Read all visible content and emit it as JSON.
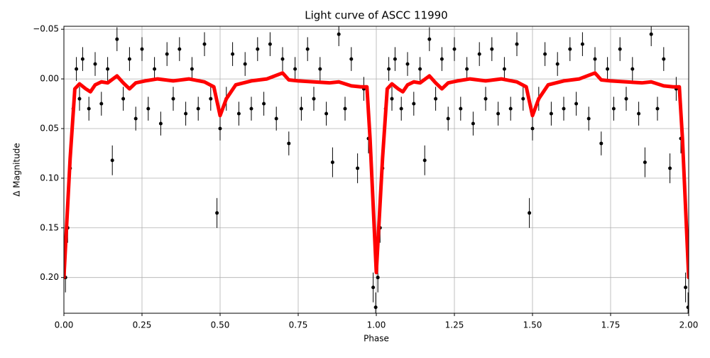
{
  "chart_data": {
    "type": "scatter",
    "title": "Light curve of ASCC 11990",
    "xlabel": "Phase",
    "ylabel": "Δ Magnitude",
    "xlim": [
      0,
      2
    ],
    "ylim": [
      0.236,
      -0.053
    ],
    "xticks": [
      {
        "value": 0,
        "label": "0.00"
      },
      {
        "value": 0.25,
        "label": "0.25"
      },
      {
        "value": 0.5,
        "label": "0.50"
      },
      {
        "value": 0.75,
        "label": "0.75"
      },
      {
        "value": 1,
        "label": "1.00"
      },
      {
        "value": 1.25,
        "label": "1.25"
      },
      {
        "value": 1.5,
        "label": "1.50"
      },
      {
        "value": 1.75,
        "label": "1.75"
      },
      {
        "value": 2,
        "label": "2.00"
      }
    ],
    "yticks": [
      {
        "value": -0.05,
        "label": "−0.05"
      },
      {
        "value": 0,
        "label": "0.00"
      },
      {
        "value": 0.05,
        "label": "0.05"
      },
      {
        "value": 0.1,
        "label": "0.10"
      },
      {
        "value": 0.15,
        "label": "0.15"
      },
      {
        "value": 0.2,
        "label": "0.20"
      }
    ],
    "grid": true,
    "series": [
      {
        "kind": "errorbar",
        "color": "#000000",
        "x": [
          0.005,
          0.012,
          0.02,
          0.03,
          0.04,
          0.05,
          0.06,
          0.08,
          0.1,
          0.12,
          0.14,
          0.155,
          0.17,
          0.19,
          0.21,
          0.23,
          0.25,
          0.27,
          0.29,
          0.31,
          0.33,
          0.35,
          0.37,
          0.39,
          0.41,
          0.43,
          0.45,
          0.47,
          0.49,
          0.5,
          0.52,
          0.54,
          0.56,
          0.58,
          0.6,
          0.62,
          0.64,
          0.66,
          0.68,
          0.7,
          0.72,
          0.74,
          0.76,
          0.78,
          0.8,
          0.82,
          0.84,
          0.86,
          0.88,
          0.9,
          0.92,
          0.94,
          0.96,
          0.975,
          0.99,
          0.998,
          1.005,
          1.012,
          1.02,
          1.03,
          1.04,
          1.05,
          1.06,
          1.08,
          1.1,
          1.12,
          1.14,
          1.155,
          1.17,
          1.19,
          1.21,
          1.23,
          1.25,
          1.27,
          1.29,
          1.31,
          1.33,
          1.35,
          1.37,
          1.39,
          1.41,
          1.43,
          1.45,
          1.47,
          1.49,
          1.5,
          1.52,
          1.54,
          1.56,
          1.58,
          1.6,
          1.62,
          1.64,
          1.66,
          1.68,
          1.7,
          1.72,
          1.74,
          1.76,
          1.78,
          1.8,
          1.82,
          1.84,
          1.86,
          1.88,
          1.9,
          1.92,
          1.94,
          1.96,
          1.975,
          1.99,
          1.998
        ],
        "values": [
          0.2,
          0.15,
          0.09,
          0.03,
          -0.01,
          0.02,
          -0.02,
          0.03,
          -0.015,
          0.025,
          -0.01,
          0.082,
          -0.04,
          0.02,
          -0.02,
          0.04,
          -0.03,
          0.03,
          -0.01,
          0.045,
          -0.025,
          0.02,
          -0.03,
          0.035,
          -0.01,
          0.03,
          -0.035,
          0.02,
          0.135,
          0.05,
          0.02,
          -0.025,
          0.035,
          -0.015,
          0.03,
          -0.03,
          0.025,
          -0.035,
          0.04,
          -0.02,
          0.065,
          -0.01,
          0.03,
          -0.03,
          0.02,
          -0.01,
          0.035,
          0.084,
          -0.045,
          0.03,
          -0.02,
          0.09,
          0.01,
          0.06,
          0.21,
          0.23,
          0.2,
          0.15,
          0.09,
          0.03,
          -0.01,
          0.02,
          -0.02,
          0.03,
          -0.015,
          0.025,
          -0.01,
          0.082,
          -0.04,
          0.02,
          -0.02,
          0.04,
          -0.03,
          0.03,
          -0.01,
          0.045,
          -0.025,
          0.02,
          -0.03,
          0.035,
          -0.01,
          0.03,
          -0.035,
          0.02,
          0.135,
          0.05,
          0.02,
          -0.025,
          0.035,
          -0.015,
          0.03,
          -0.03,
          0.025,
          -0.035,
          0.04,
          -0.02,
          0.065,
          -0.01,
          0.03,
          -0.03,
          0.02,
          -0.01,
          0.035,
          0.084,
          -0.045,
          0.03,
          -0.02,
          0.09,
          0.01,
          0.06,
          0.21,
          0.23
        ],
        "errors": [
          0.015,
          0.015,
          0.012,
          0.012,
          0.012,
          0.012,
          0.012,
          0.012,
          0.012,
          0.012,
          0.012,
          0.015,
          0.012,
          0.012,
          0.012,
          0.012,
          0.012,
          0.012,
          0.012,
          0.012,
          0.012,
          0.012,
          0.012,
          0.012,
          0.012,
          0.012,
          0.012,
          0.012,
          0.015,
          0.012,
          0.012,
          0.012,
          0.012,
          0.012,
          0.012,
          0.012,
          0.012,
          0.012,
          0.012,
          0.012,
          0.012,
          0.012,
          0.012,
          0.012,
          0.012,
          0.012,
          0.012,
          0.015,
          0.012,
          0.012,
          0.012,
          0.015,
          0.012,
          0.015,
          0.015,
          0.015,
          0.015,
          0.015,
          0.012,
          0.012,
          0.012,
          0.012,
          0.012,
          0.012,
          0.012,
          0.012,
          0.012,
          0.015,
          0.012,
          0.012,
          0.012,
          0.012,
          0.012,
          0.012,
          0.012,
          0.012,
          0.012,
          0.012,
          0.012,
          0.012,
          0.012,
          0.012,
          0.012,
          0.012,
          0.015,
          0.012,
          0.012,
          0.012,
          0.012,
          0.012,
          0.012,
          0.012,
          0.012,
          0.012,
          0.012,
          0.012,
          0.012,
          0.012,
          0.012,
          0.012,
          0.012,
          0.012,
          0.012,
          0.015,
          0.012,
          0.012,
          0.012,
          0.015,
          0.012,
          0.015,
          0.015,
          0.015
        ]
      },
      {
        "kind": "line",
        "color": "#ff0000",
        "x": [
          0,
          0.02,
          0.035,
          0.05,
          0.07,
          0.085,
          0.1,
          0.12,
          0.14,
          0.17,
          0.19,
          0.21,
          0.23,
          0.26,
          0.3,
          0.35,
          0.4,
          0.45,
          0.48,
          0.5,
          0.52,
          0.55,
          0.6,
          0.65,
          0.7,
          0.72,
          0.75,
          0.8,
          0.85,
          0.88,
          0.92,
          0.95,
          0.97,
          0.98,
          1.0,
          1.02,
          1.035,
          1.05,
          1.07,
          1.085,
          1.1,
          1.12,
          1.14,
          1.17,
          1.19,
          1.21,
          1.23,
          1.26,
          1.3,
          1.35,
          1.4,
          1.45,
          1.48,
          1.5,
          1.52,
          1.55,
          1.6,
          1.65,
          1.7,
          1.72,
          1.75,
          1.8,
          1.85,
          1.88,
          1.92,
          1.95,
          1.97,
          1.98,
          2.0
        ],
        "values": [
          0.2,
          0.08,
          0.01,
          0.005,
          0.01,
          0.013,
          0.006,
          0.003,
          0.004,
          -0.003,
          0.004,
          0.01,
          0.004,
          0.002,
          0,
          0.002,
          0,
          0.003,
          0.008,
          0.037,
          0.02,
          0.006,
          0.002,
          0,
          -0.006,
          0.001,
          0.002,
          0.003,
          0.004,
          0.003,
          0.007,
          0.008,
          0.008,
          0.06,
          0.195,
          0.08,
          0.01,
          0.005,
          0.01,
          0.013,
          0.006,
          0.003,
          0.004,
          -0.003,
          0.004,
          0.01,
          0.004,
          0.002,
          0,
          0.002,
          0,
          0.003,
          0.008,
          0.037,
          0.02,
          0.006,
          0.002,
          0,
          -0.006,
          0.001,
          0.002,
          0.003,
          0.004,
          0.003,
          0.007,
          0.008,
          0.008,
          0.06,
          0.2
        ]
      }
    ]
  }
}
